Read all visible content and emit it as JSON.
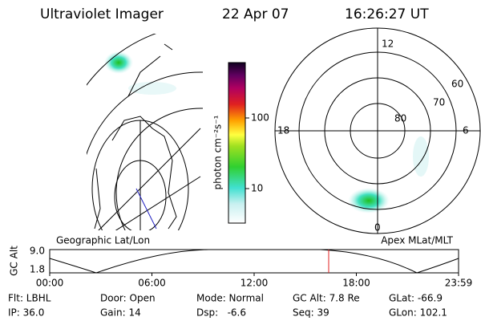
{
  "header": {
    "instrument": "Ultraviolet Imager",
    "date": "22 Apr 07",
    "time": "16:26:27 UT"
  },
  "colorbar": {
    "label": "photon cm⁻²s⁻¹",
    "ticks": [
      "100",
      "10"
    ]
  },
  "polar": {
    "labels": [
      "12",
      "60",
      "70",
      "80",
      "18",
      "6",
      "0"
    ]
  },
  "timeline": {
    "left_label": "Geographic Lat/Lon",
    "right_label": "Apex MLat/MLT",
    "axis_label": "GC Alt",
    "yticks": [
      "9.0",
      "1.8"
    ],
    "xticks": [
      "00:00",
      "06:00",
      "12:00",
      "18:00",
      "23:59"
    ]
  },
  "info": [
    [
      "Flt: LBHL",
      "Door: Open",
      "Mode: Normal",
      "GC Alt: 7.8 Re",
      "GLat: -66.9"
    ],
    [
      "IP: 36.0",
      "Gain: 14",
      "Dsp:   -6.6",
      "Seq: 39",
      "GLon: 102.1"
    ]
  ]
}
